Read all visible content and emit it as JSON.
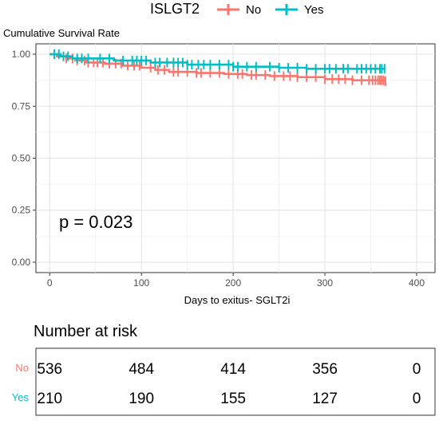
{
  "legend": {
    "title": "ISLGT2",
    "items": [
      {
        "label": "No",
        "color": "#F8766D"
      },
      {
        "label": "Yes",
        "color": "#00BFC4"
      }
    ]
  },
  "chart_data": {
    "type": "line",
    "title": "",
    "ylabel": "Cumulative Survival Rate",
    "xlabel": "Days to exitus- SGLT2i",
    "xlim": [
      -15,
      420
    ],
    "ylim": [
      -0.05,
      1.05
    ],
    "x_ticks": [
      0,
      100,
      200,
      300,
      400
    ],
    "y_ticks": [
      0.0,
      0.25,
      0.5,
      0.75,
      1.0
    ],
    "y_tick_labels": [
      "0.00",
      "0.25",
      "0.50",
      "0.75",
      "1.00"
    ],
    "grid": true,
    "legend_position": "top",
    "annotation": "p = 0.023",
    "series": [
      {
        "name": "No",
        "color": "#F8766D",
        "steps": [
          [
            0,
            1.0
          ],
          [
            8,
            0.99
          ],
          [
            18,
            0.98
          ],
          [
            28,
            0.97
          ],
          [
            40,
            0.96
          ],
          [
            60,
            0.955
          ],
          [
            80,
            0.945
          ],
          [
            100,
            0.935
          ],
          [
            115,
            0.925
          ],
          [
            130,
            0.915
          ],
          [
            160,
            0.91
          ],
          [
            190,
            0.905
          ],
          [
            215,
            0.9
          ],
          [
            240,
            0.895
          ],
          [
            270,
            0.89
          ],
          [
            300,
            0.88
          ],
          [
            330,
            0.875
          ],
          [
            365,
            0.87
          ]
        ],
        "censor_x": [
          18,
          25,
          30,
          38,
          42,
          48,
          52,
          58,
          65,
          72,
          78,
          85,
          92,
          98,
          110,
          118,
          125,
          135,
          140,
          150,
          160,
          165,
          175,
          185,
          195,
          205,
          210,
          220,
          225,
          235,
          245,
          255,
          262,
          270,
          280,
          290,
          300,
          308,
          315,
          322,
          330,
          340,
          348,
          352,
          355,
          358,
          360,
          362,
          364,
          366
        ]
      },
      {
        "name": "Yes",
        "color": "#00BFC4",
        "steps": [
          [
            0,
            1.0
          ],
          [
            12,
            0.99
          ],
          [
            25,
            0.98
          ],
          [
            70,
            0.97
          ],
          [
            110,
            0.96
          ],
          [
            150,
            0.95
          ],
          [
            200,
            0.94
          ],
          [
            250,
            0.935
          ],
          [
            280,
            0.93
          ],
          [
            365,
            0.93
          ]
        ],
        "censor_x": [
          5,
          10,
          15,
          20,
          30,
          35,
          42,
          55,
          65,
          80,
          90,
          95,
          100,
          105,
          115,
          120,
          128,
          135,
          140,
          145,
          150,
          155,
          162,
          168,
          175,
          185,
          195,
          200,
          205,
          215,
          225,
          240,
          250,
          260,
          270,
          280,
          290,
          300,
          305,
          312,
          320,
          325,
          335,
          340,
          345,
          350,
          355,
          360,
          362,
          365
        ]
      }
    ]
  },
  "risk_table": {
    "title": "Number at risk",
    "rows": [
      {
        "label": "No",
        "color": "#F8766D",
        "values": [
          "536",
          "484",
          "414",
          "356",
          "0"
        ]
      },
      {
        "label": "Yes",
        "color": "#00BFC4",
        "values": [
          "210",
          "190",
          "155",
          "127",
          "0"
        ]
      }
    ]
  }
}
